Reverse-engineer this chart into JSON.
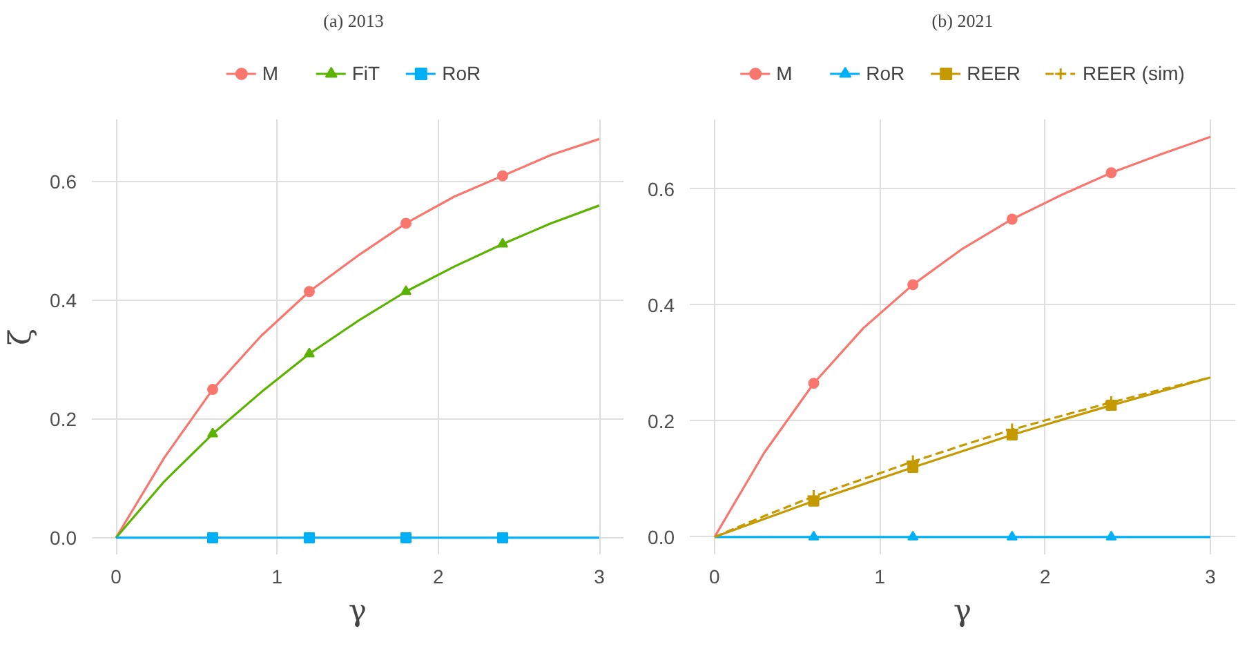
{
  "chart_data": [
    {
      "type": "line",
      "title": "(a) 2013",
      "xlabel": "γ",
      "ylabel": "ζ",
      "xlim": [
        -0.15,
        3.15
      ],
      "ylim": [
        -0.028,
        0.705
      ],
      "xticks": [
        0,
        1,
        2,
        3
      ],
      "yticks": [
        {
          "value": 0,
          "label": "0.0"
        },
        0.2,
        0.4,
        0.6
      ],
      "grid": true,
      "legend": "top",
      "x": [
        0,
        0.3,
        0.6,
        0.9,
        1.2,
        1.5,
        1.8,
        2.1,
        2.4,
        2.7,
        3.0
      ],
      "series": [
        {
          "name": "M",
          "color": "#f8766d",
          "values": [
            0,
            0.135,
            0.25,
            0.34,
            0.415,
            0.475,
            0.53,
            0.575,
            0.61,
            0.645,
            0.672
          ]
        },
        {
          "type": "scatter",
          "marker": "circle",
          "color": "#f8766d",
          "x": [
            0.6,
            1.2,
            1.8,
            2.4
          ],
          "values": [
            0.25,
            0.415,
            0.53,
            0.61
          ]
        },
        {
          "name": "FiT",
          "color": "#5bb300",
          "values": [
            0,
            0.095,
            0.175,
            0.245,
            0.31,
            0.365,
            0.415,
            0.457,
            0.495,
            0.53,
            0.56
          ]
        },
        {
          "type": "scatter",
          "marker": "triangle",
          "color": "#5bb300",
          "x": [
            0.6,
            1.2,
            1.8,
            2.4
          ],
          "values": [
            0.175,
            0.31,
            0.415,
            0.495
          ]
        },
        {
          "name": "RoR",
          "color": "#00b0f6",
          "values": [
            0,
            0,
            0,
            0,
            0,
            0,
            0,
            0,
            0,
            0,
            0
          ]
        },
        {
          "type": "scatter",
          "marker": "square",
          "color": "#00b0f6",
          "x": [
            0.6,
            1.2,
            1.8,
            2.4
          ],
          "values": [
            0,
            0,
            0,
            0
          ]
        }
      ]
    },
    {
      "type": "line",
      "title": "(b) 2021",
      "xlabel": "γ",
      "xlim": [
        -0.15,
        3.15
      ],
      "ylim": [
        -0.03,
        0.72
      ],
      "xticks": [
        0,
        1,
        2,
        3
      ],
      "yticks": [
        {
          "value": 0,
          "label": "0.0"
        },
        0.2,
        0.4,
        0.6
      ],
      "grid": true,
      "legend": "top",
      "x": [
        0,
        0.3,
        0.6,
        0.9,
        1.2,
        1.5,
        1.8,
        2.1,
        2.4,
        2.7,
        3.0
      ],
      "series": [
        {
          "name": "M",
          "color": "#f8766d",
          "values": [
            0,
            0.145,
            0.265,
            0.36,
            0.435,
            0.497,
            0.548,
            0.59,
            0.628,
            0.66,
            0.69
          ]
        },
        {
          "type": "scatter",
          "marker": "circle",
          "color": "#f8766d",
          "x": [
            0.6,
            1.2,
            1.8,
            2.4
          ],
          "values": [
            0.265,
            0.435,
            0.548,
            0.628
          ]
        },
        {
          "name": "RoR",
          "color": "#00b0f6",
          "values": [
            0,
            0,
            0,
            0,
            0,
            0,
            0,
            0,
            0,
            0,
            0
          ]
        },
        {
          "type": "scatter",
          "marker": "triangle",
          "color": "#00b0f6",
          "x": [
            0.6,
            1.2,
            1.8,
            2.4
          ],
          "values": [
            0,
            0,
            0,
            0
          ]
        },
        {
          "name": "REER",
          "color": "#c49a00",
          "values": [
            0,
            0.031,
            0.062,
            0.091,
            0.12,
            0.148,
            0.176,
            0.202,
            0.227,
            0.251,
            0.275
          ]
        },
        {
          "type": "scatter",
          "marker": "square",
          "color": "#c49a00",
          "x": [
            0.6,
            1.2,
            1.8,
            2.4
          ],
          "values": [
            0.062,
            0.12,
            0.176,
            0.227
          ]
        },
        {
          "name": "REER (sim)",
          "color": "#c49a00",
          "line_style": "dashed",
          "values": [
            0,
            0.036,
            0.07,
            0.1,
            0.13,
            0.158,
            0.185,
            0.209,
            0.232,
            0.254,
            0.275
          ]
        },
        {
          "type": "scatter",
          "marker": "cross",
          "color": "#c49a00",
          "x": [
            0.6,
            1.2,
            1.8,
            2.4
          ],
          "values": [
            0.07,
            0.13,
            0.185,
            0.232
          ]
        }
      ]
    }
  ]
}
